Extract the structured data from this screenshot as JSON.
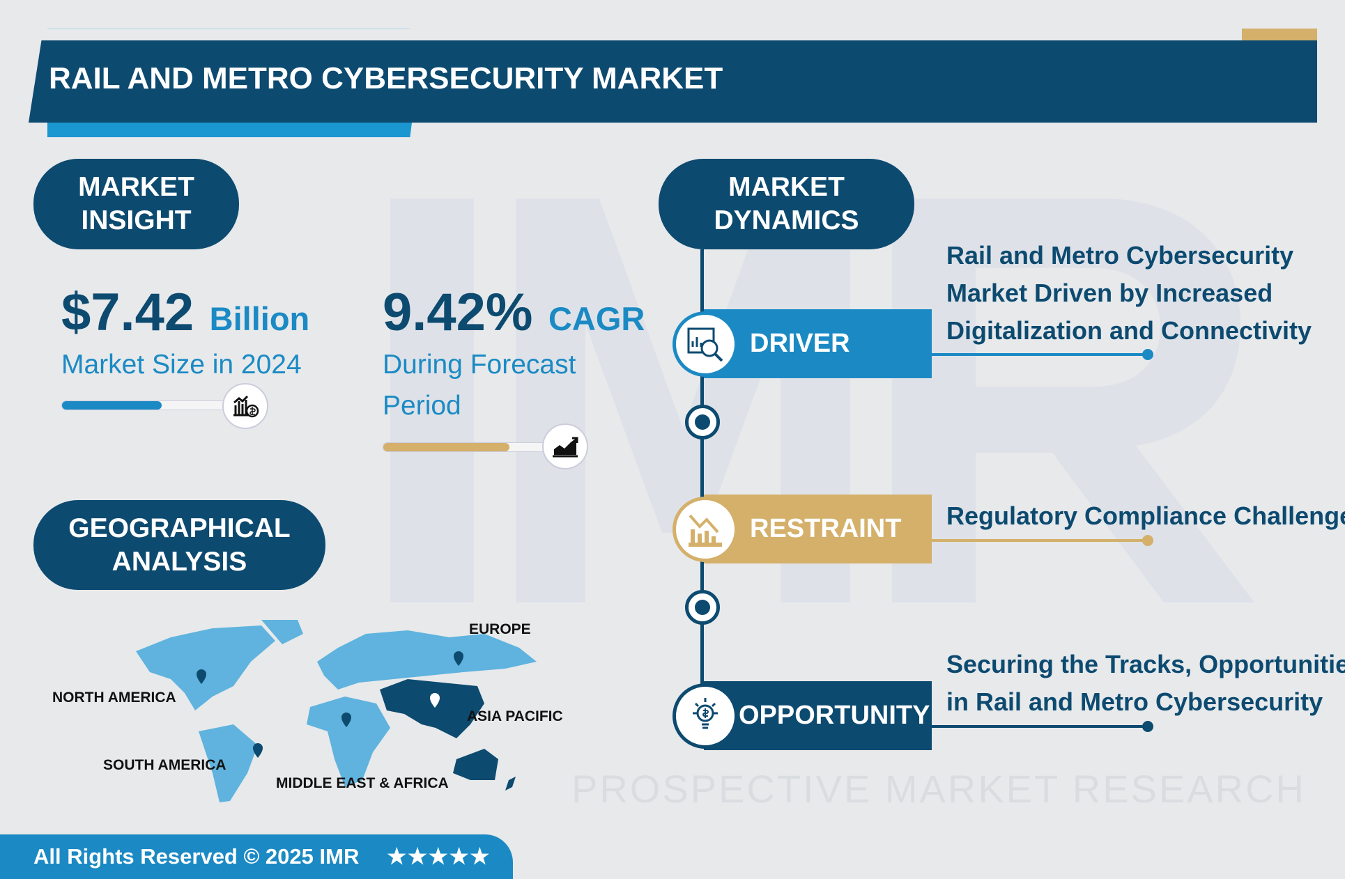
{
  "watermark": {
    "logo": "IMR",
    "tagline": "PROSPECTIVE MARKET RESEARCH"
  },
  "header": {
    "title": "RAIL AND METRO CYBERSECURITY MARKET"
  },
  "insight": {
    "heading": [
      "MARKET",
      "INSIGHT"
    ],
    "market_size": {
      "value": "$7.42",
      "unit": "Billion",
      "label": "Market Size in 2024",
      "progress": 0.6,
      "icon": "chart-dollar-icon"
    },
    "cagr": {
      "value": "9.42%",
      "unit": "CAGR",
      "label_line1": "During Forecast",
      "label_line2": "Period",
      "progress": 0.76,
      "icon": "growth-chart-icon"
    }
  },
  "geo": {
    "heading": [
      "GEOGRAPHICAL",
      "ANALYSIS"
    ],
    "regions": [
      "EUROPE",
      "NORTH AMERICA",
      "ASIA PACIFIC",
      "SOUTH AMERICA",
      "MIDDLE EAST & AFRICA"
    ],
    "highlighted": "ASIA PACIFIC"
  },
  "dynamics": {
    "heading": [
      "MARKET",
      "DYNAMICS"
    ],
    "items": [
      {
        "label": "DRIVER",
        "icon": "analysis-icon",
        "color": "#1b8ac4",
        "text": [
          "Rail and Metro Cybersecurity",
          "Market Driven by Increased",
          "Digitalization and Connectivity"
        ]
      },
      {
        "label": "RESTRAINT",
        "icon": "declining-chart-icon",
        "color": "#d4b06a",
        "text": [
          "Regulatory Compliance Challenges"
        ]
      },
      {
        "label": "OPPORTUNITY",
        "icon": "idea-dollar-icon",
        "color": "#0d4a70",
        "text": [
          "Securing the Tracks, Opportunities",
          "in Rail and Metro Cybersecurity"
        ]
      }
    ]
  },
  "footer": {
    "copyright": "All Rights Reserved © 2025 IMR",
    "stars": "★★★★★",
    "rating": 5
  },
  "colors": {
    "navy": "#0d4a70",
    "blue": "#1b8ac4",
    "gold": "#d4b06a",
    "background": "#e7e9eb"
  }
}
